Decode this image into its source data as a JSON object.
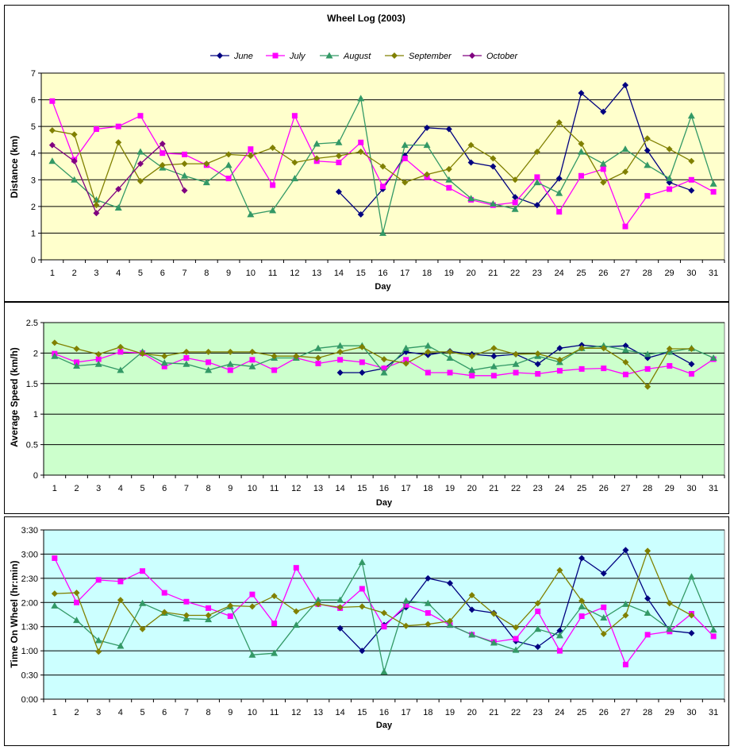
{
  "colors": {
    "June": "#000080",
    "July": "#FF00FF",
    "August": "#339966",
    "September": "#808000",
    "October": "#800080"
  },
  "markers": {
    "June": "diamond",
    "July": "square",
    "August": "triangle",
    "September": "diamond",
    "October": "diamond"
  },
  "chart_data": [
    {
      "type": "line",
      "title": "Wheel Log (2003)",
      "xlabel": "Day",
      "ylabel": "Distance (km)",
      "ylim": [
        0,
        7
      ],
      "yticks": [
        "0",
        "1",
        "2",
        "3",
        "4",
        "5",
        "6",
        "7"
      ],
      "background": "#FFFFCC",
      "grid": true,
      "legend": "top",
      "categories": [
        "1",
        "2",
        "3",
        "4",
        "5",
        "6",
        "7",
        "8",
        "9",
        "10",
        "11",
        "12",
        "13",
        "14",
        "15",
        "16",
        "17",
        "18",
        "19",
        "20",
        "21",
        "22",
        "23",
        "24",
        "25",
        "26",
        "27",
        "28",
        "29",
        "30",
        "31"
      ],
      "series": [
        {
          "name": "June",
          "values": [
            null,
            null,
            null,
            null,
            null,
            null,
            null,
            null,
            null,
            null,
            null,
            null,
            null,
            2.55,
            1.7,
            2.65,
            3.9,
            4.95,
            4.9,
            3.65,
            3.5,
            2.35,
            2.05,
            3.05,
            6.25,
            5.55,
            6.55,
            4.1,
            2.9,
            2.6,
            null
          ]
        },
        {
          "name": "July",
          "values": [
            5.95,
            3.75,
            4.9,
            5.0,
            5.4,
            4.0,
            3.95,
            3.55,
            3.05,
            4.15,
            2.8,
            5.4,
            3.7,
            3.65,
            4.4,
            2.75,
            3.8,
            3.1,
            2.7,
            2.25,
            2.05,
            2.15,
            3.1,
            1.8,
            3.15,
            3.4,
            1.25,
            2.4,
            2.65,
            3.0,
            2.55
          ]
        },
        {
          "name": "August",
          "values": [
            3.7,
            3.0,
            2.25,
            1.95,
            4.05,
            3.45,
            3.15,
            2.9,
            3.55,
            1.7,
            1.85,
            3.05,
            4.35,
            4.4,
            6.05,
            1.0,
            4.3,
            4.3,
            3.0,
            2.3,
            2.1,
            1.9,
            2.9,
            2.5,
            4.05,
            3.6,
            4.15,
            3.55,
            3.05,
            5.4,
            2.85
          ]
        },
        {
          "name": "September",
          "values": [
            4.85,
            4.7,
            2.05,
            4.4,
            2.95,
            3.55,
            3.6,
            3.6,
            3.95,
            3.9,
            4.2,
            3.65,
            3.8,
            3.9,
            4.05,
            3.5,
            2.9,
            3.2,
            3.4,
            4.3,
            3.8,
            3.0,
            4.05,
            5.15,
            4.35,
            2.9,
            3.3,
            4.55,
            4.15,
            3.7,
            null
          ]
        },
        {
          "name": "October",
          "values": [
            4.3,
            3.7,
            1.75,
            2.65,
            3.6,
            4.35,
            2.6,
            null,
            null,
            null,
            null,
            null,
            null,
            null,
            null,
            null,
            null,
            null,
            null,
            null,
            null,
            null,
            null,
            null,
            null,
            null,
            null,
            null,
            null,
            null,
            null
          ]
        }
      ]
    },
    {
      "type": "line",
      "title": "",
      "xlabel": "Day",
      "ylabel": "Average Speed (km/h)",
      "ylim": [
        0,
        2.5
      ],
      "yticks": [
        "0",
        "0.5",
        "1",
        "1.5",
        "2",
        "2.5"
      ],
      "background": "#CCFFCC",
      "grid": true,
      "categories": [
        "1",
        "2",
        "3",
        "4",
        "5",
        "6",
        "7",
        "8",
        "9",
        "10",
        "11",
        "12",
        "13",
        "14",
        "15",
        "16",
        "17",
        "18",
        "19",
        "20",
        "21",
        "22",
        "23",
        "24",
        "25",
        "26",
        "27",
        "28",
        "29",
        "30",
        "31"
      ],
      "series": [
        {
          "name": "June",
          "values": [
            null,
            null,
            null,
            null,
            null,
            null,
            null,
            null,
            null,
            null,
            null,
            null,
            null,
            1.68,
            1.68,
            1.75,
            2.02,
            1.97,
            2.03,
            1.98,
            1.95,
            1.98,
            1.82,
            2.08,
            2.13,
            2.1,
            2.12,
            1.92,
            2.02,
            1.82,
            null
          ]
        },
        {
          "name": "July",
          "values": [
            1.99,
            1.85,
            1.9,
            2.02,
            2.0,
            1.78,
            1.92,
            1.85,
            1.72,
            1.89,
            1.72,
            1.92,
            1.83,
            1.89,
            1.85,
            1.75,
            1.89,
            1.68,
            1.68,
            1.63,
            1.63,
            1.68,
            1.66,
            1.71,
            1.74,
            1.75,
            1.65,
            1.74,
            1.79,
            1.66,
            1.9
          ]
        },
        {
          "name": "August",
          "values": [
            1.95,
            1.79,
            1.82,
            1.72,
            2.02,
            1.84,
            1.82,
            1.72,
            1.82,
            1.78,
            1.92,
            1.92,
            2.08,
            2.12,
            2.12,
            1.68,
            2.08,
            2.12,
            1.92,
            1.72,
            1.78,
            1.82,
            1.95,
            1.85,
            2.08,
            2.12,
            2.05,
            1.98,
            2.02,
            2.08,
            1.92
          ]
        },
        {
          "name": "September",
          "values": [
            2.17,
            2.07,
            1.98,
            2.1,
            1.99,
            1.95,
            2.02,
            2.02,
            2.02,
            2.02,
            1.95,
            1.95,
            1.92,
            2.02,
            2.1,
            1.9,
            1.83,
            2.02,
            2.02,
            1.95,
            2.08,
            1.98,
            1.99,
            1.89,
            2.08,
            2.08,
            1.85,
            1.45,
            2.07,
            2.07,
            null
          ]
        }
      ]
    },
    {
      "type": "line",
      "title": "",
      "xlabel": "Day",
      "ylabel": "Time On Wheel (hr:min)",
      "ylim": [
        0,
        210
      ],
      "yticks": [
        "0:00",
        "0:30",
        "1:00",
        "1:30",
        "2:00",
        "2:30",
        "3:00",
        "3:30"
      ],
      "background": "#CCFFFF",
      "grid": true,
      "categories": [
        "1",
        "2",
        "3",
        "4",
        "5",
        "6",
        "7",
        "8",
        "9",
        "10",
        "11",
        "12",
        "13",
        "14",
        "15",
        "16",
        "17",
        "18",
        "19",
        "20",
        "21",
        "22",
        "23",
        "24",
        "25",
        "26",
        "27",
        "28",
        "29",
        "30",
        "31"
      ],
      "series": [
        {
          "name": "June",
          "values": [
            null,
            null,
            null,
            null,
            null,
            null,
            null,
            null,
            null,
            null,
            null,
            null,
            null,
            88,
            60,
            92,
            114,
            150,
            144,
            111,
            107,
            72,
            65,
            85,
            175,
            156,
            185,
            125,
            85,
            82,
            null
          ]
        },
        {
          "name": "July",
          "values": [
            175,
            120,
            148,
            146,
            159,
            132,
            121,
            113,
            103,
            130,
            94,
            163,
            118,
            113,
            137,
            90,
            117,
            107,
            92,
            80,
            71,
            75,
            109,
            60,
            103,
            114,
            43,
            80,
            84,
            106,
            78
          ]
        },
        {
          "name": "August",
          "values": [
            116,
            98,
            73,
            66,
            119,
            107,
            100,
            99,
            115,
            55,
            57,
            92,
            123,
            123,
            170,
            34,
            122,
            119,
            92,
            80,
            70,
            61,
            87,
            79,
            115,
            101,
            118,
            107,
            87,
            152,
            86
          ]
        },
        {
          "name": "September",
          "values": [
            131,
            132,
            59,
            123,
            87,
            108,
            104,
            104,
            116,
            115,
            128,
            109,
            118,
            114,
            115,
            107,
            91,
            93,
            97,
            129,
            106,
            89,
            119,
            160,
            122,
            81,
            104,
            184,
            119,
            104,
            null
          ]
        }
      ]
    }
  ]
}
